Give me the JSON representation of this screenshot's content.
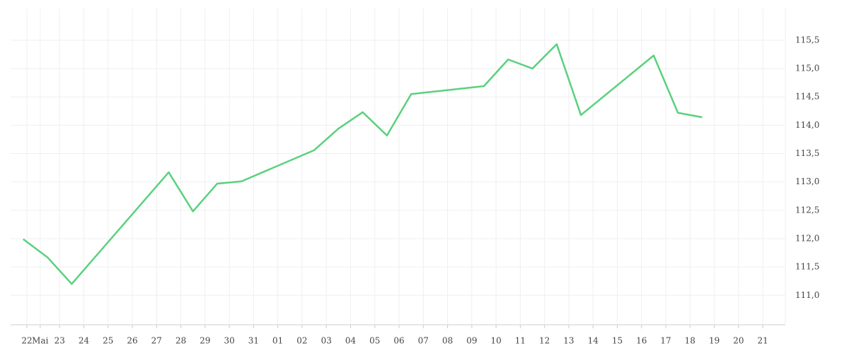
{
  "chart_data": {
    "type": "line",
    "x": [
      -0.5,
      0.5,
      1.5,
      5.5,
      6.5,
      7.5,
      8.5,
      11.5,
      12.5,
      13.5,
      14.5,
      15.5,
      18.5,
      19.5,
      20.5,
      21.5,
      22.5,
      25.5,
      26.5,
      27.5
    ],
    "series": [
      {
        "color": "#5ad17e",
        "values": [
          111.99,
          111.67,
          111.2,
          113.17,
          112.48,
          112.97,
          113.01,
          113.56,
          113.94,
          114.23,
          113.82,
          114.55,
          114.69,
          115.16,
          115.0,
          115.43,
          114.18,
          115.23,
          114.22,
          114.14
        ]
      }
    ],
    "xlim": [
      -1.02,
      30.93
    ],
    "xticks": [
      {
        "value": -0.35,
        "label": "22"
      },
      {
        "value": 0.2,
        "label": "Mai"
      },
      {
        "value": 1,
        "label": "23"
      },
      {
        "value": 2,
        "label": "24"
      },
      {
        "value": 3,
        "label": "25"
      },
      {
        "value": 4,
        "label": "26"
      },
      {
        "value": 5,
        "label": "27"
      },
      {
        "value": 6,
        "label": "28"
      },
      {
        "value": 7,
        "label": "29"
      },
      {
        "value": 8,
        "label": "30"
      },
      {
        "value": 9,
        "label": "31"
      },
      {
        "value": 10,
        "label": "01"
      },
      {
        "value": 11,
        "label": "02"
      },
      {
        "value": 12,
        "label": "03"
      },
      {
        "value": 13,
        "label": "04"
      },
      {
        "value": 14,
        "label": "05"
      },
      {
        "value": 15,
        "label": "06"
      },
      {
        "value": 16,
        "label": "07"
      },
      {
        "value": 17,
        "label": "08"
      },
      {
        "value": 18,
        "label": "09"
      },
      {
        "value": 19,
        "label": "10"
      },
      {
        "value": 20,
        "label": "11"
      },
      {
        "value": 21,
        "label": "12"
      },
      {
        "value": 22,
        "label": "13"
      },
      {
        "value": 23,
        "label": "14"
      },
      {
        "value": 24,
        "label": "15"
      },
      {
        "value": 25,
        "label": "16"
      },
      {
        "value": 26,
        "label": "17"
      },
      {
        "value": 27,
        "label": "18"
      },
      {
        "value": 28,
        "label": "19"
      },
      {
        "value": 29,
        "label": "20"
      },
      {
        "value": 30,
        "label": "21"
      }
    ],
    "ylim": [
      110.48,
      116.06
    ],
    "yticks": [
      {
        "value": 111,
        "label": "111,0"
      },
      {
        "value": 111.5,
        "label": "111,5"
      },
      {
        "value": 112,
        "label": "112,0"
      },
      {
        "value": 112.5,
        "label": "112,5"
      },
      {
        "value": 113,
        "label": "113,0"
      },
      {
        "value": 113.5,
        "label": "113,5"
      },
      {
        "value": 114,
        "label": "114,0"
      },
      {
        "value": 114.5,
        "label": "114,5"
      },
      {
        "value": 115,
        "label": "115,0"
      },
      {
        "value": 115.5,
        "label": "115,5"
      }
    ],
    "grid": true
  }
}
